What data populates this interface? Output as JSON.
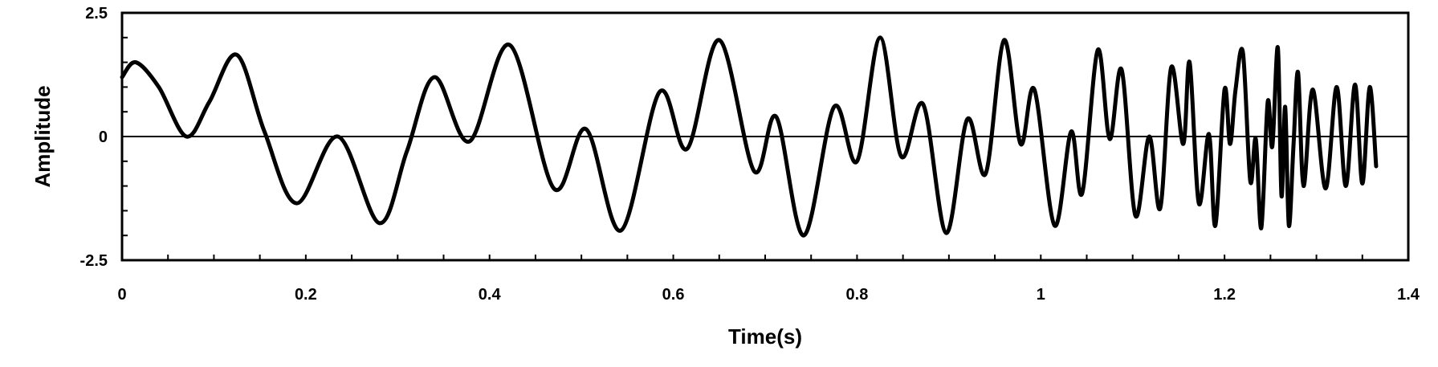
{
  "chart_data": {
    "type": "line",
    "title": "",
    "xlabel": "Time(s)",
    "ylabel": "Amplitude",
    "xlim": [
      0,
      1.4
    ],
    "ylim": [
      -2.5,
      2.5
    ],
    "x_ticks": [
      0,
      0.2,
      0.4,
      0.6,
      0.8,
      1,
      1.2,
      1.4
    ],
    "x_tick_labels": [
      "0",
      "0.2",
      "0.4",
      "0.6",
      "0.8",
      "1",
      "1.2",
      "1.4"
    ],
    "y_ticks": [
      -2.5,
      0,
      2.5
    ],
    "y_tick_labels": [
      "-2.5",
      "0",
      "2.5"
    ],
    "y_minor_tick_step": 0.5,
    "x_minor_tick_step": 0.05,
    "zero_line": true,
    "grid": false,
    "legend": "none",
    "line_color": "#000000",
    "series": [
      {
        "x": [
          0,
          0.015,
          0.04,
          0.07,
          0.095,
          0.125,
          0.155,
          0.19,
          0.235,
          0.28,
          0.31,
          0.34,
          0.378,
          0.422,
          0.47,
          0.505,
          0.543,
          0.585,
          0.615,
          0.65,
          0.688,
          0.712,
          0.742,
          0.775,
          0.8,
          0.825,
          0.848,
          0.872,
          0.897,
          0.92,
          0.94,
          0.96,
          0.978,
          0.993,
          1.015,
          1.033,
          1.045,
          1.062,
          1.075,
          1.088,
          1.103,
          1.118,
          1.13,
          1.142,
          1.155,
          1.162,
          1.172,
          1.183,
          1.19,
          1.2,
          1.206,
          1.212,
          1.22,
          1.228,
          1.234,
          1.24,
          1.247,
          1.252,
          1.258,
          1.262,
          1.266,
          1.27,
          1.275,
          1.28,
          1.286,
          1.296,
          1.31,
          1.322,
          1.332,
          1.342,
          1.35,
          1.358,
          1.365
        ],
        "values": [
          1.2,
          1.5,
          1.0,
          0.0,
          0.7,
          1.65,
          0.1,
          -1.35,
          0.0,
          -1.75,
          -0.3,
          1.2,
          -0.1,
          1.85,
          -1.05,
          0.15,
          -1.9,
          0.9,
          -0.25,
          1.95,
          -0.7,
          0.4,
          -2.0,
          0.6,
          -0.5,
          2.0,
          -0.4,
          0.65,
          -1.95,
          0.35,
          -0.75,
          1.95,
          -0.15,
          0.95,
          -1.8,
          0.1,
          -1.15,
          1.75,
          -0.05,
          1.35,
          -1.6,
          0.0,
          -1.45,
          1.4,
          -0.15,
          1.5,
          -1.35,
          0.05,
          -1.8,
          0.95,
          -0.15,
          0.95,
          1.7,
          -0.9,
          -0.05,
          -1.85,
          0.7,
          -0.2,
          1.8,
          -1.2,
          0.6,
          -1.8,
          -0.2,
          1.3,
          -1.0,
          0.95,
          -1.05,
          1.0,
          -1.0,
          1.05,
          -0.95,
          1.0,
          -0.6
        ]
      }
    ]
  }
}
